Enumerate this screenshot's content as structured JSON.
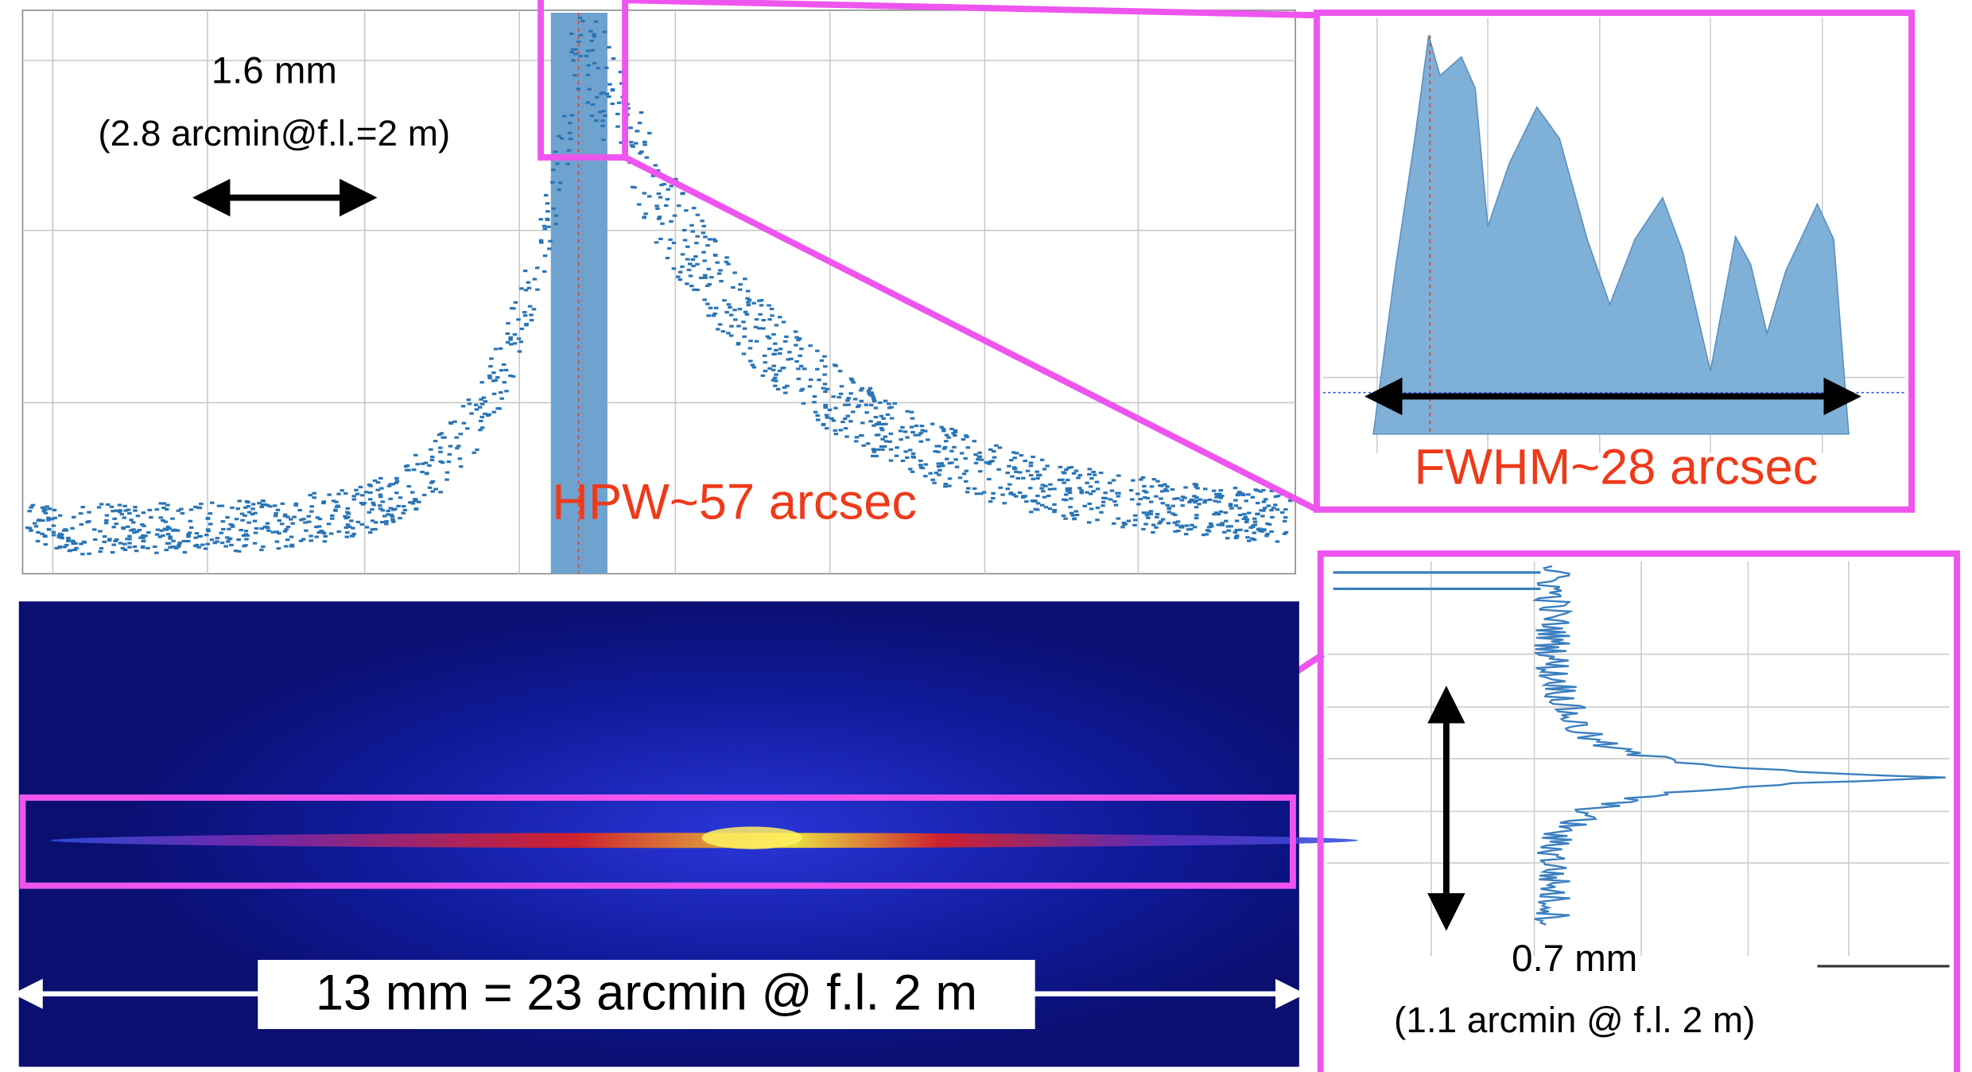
{
  "top_plot": {
    "width_label": "1.6 mm",
    "width_note": "(2.8 arcmin@f.l.=2 m)",
    "hpw_label": "HPW~57 arcsec"
  },
  "zoom_inset": {
    "fwhm_label": "FWHM~28 arcsec"
  },
  "image": {
    "scale_label": "13 mm = 23 arcmin @ f.l. 2 m"
  },
  "vertical_inset": {
    "width_label": "0.7 mm",
    "width_note": "(1.1 arcmin @ f.l. 2 m)"
  }
}
